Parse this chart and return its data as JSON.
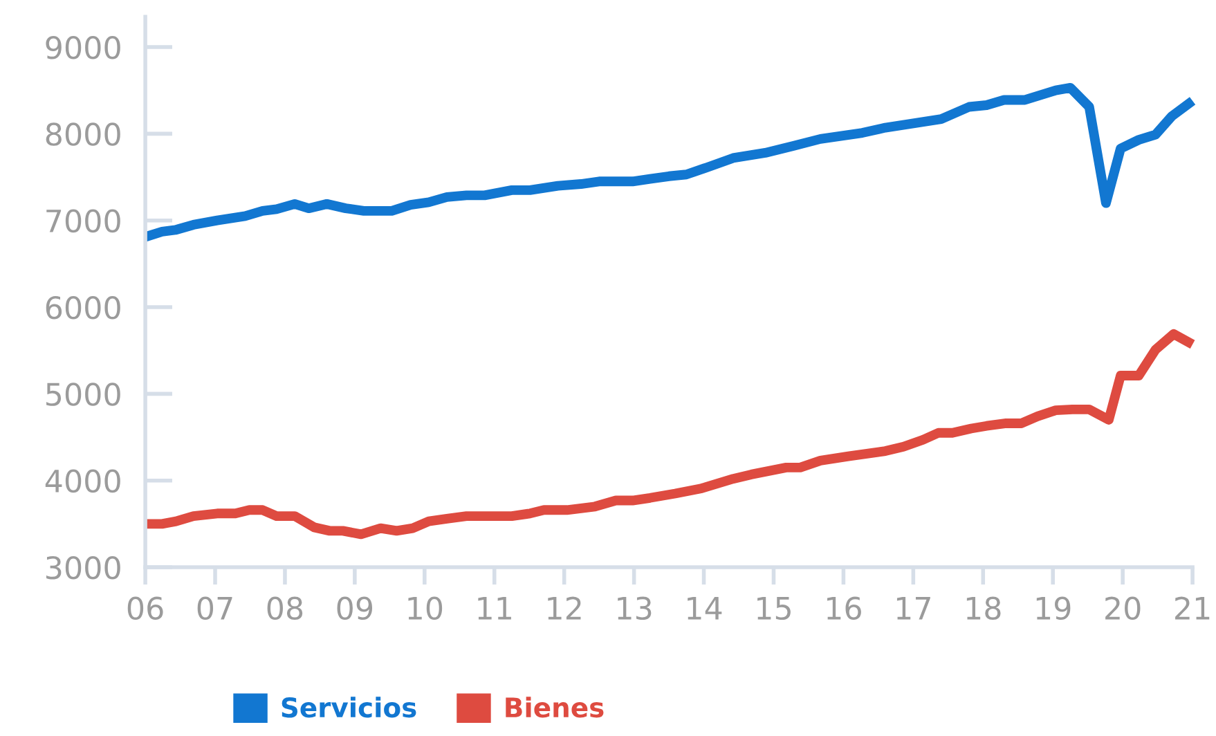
{
  "chart_data": {
    "type": "line",
    "xlim": [
      2006,
      2021
    ],
    "ylim": [
      3000,
      9350
    ],
    "xticks": [
      {
        "value": 2006,
        "label": "06"
      },
      {
        "value": 2007,
        "label": "07"
      },
      {
        "value": 2008,
        "label": "08"
      },
      {
        "value": 2009,
        "label": "09"
      },
      {
        "value": 2010,
        "label": "10"
      },
      {
        "value": 2011,
        "label": "11"
      },
      {
        "value": 2012,
        "label": "12"
      },
      {
        "value": 2013,
        "label": "13"
      },
      {
        "value": 2014,
        "label": "14"
      },
      {
        "value": 2015,
        "label": "15"
      },
      {
        "value": 2016,
        "label": "16"
      },
      {
        "value": 2017,
        "label": "17"
      },
      {
        "value": 2018,
        "label": "18"
      },
      {
        "value": 2019,
        "label": "19"
      },
      {
        "value": 2020,
        "label": "20"
      },
      {
        "value": 2021,
        "label": "21"
      }
    ],
    "yticks": [
      3000,
      4000,
      5000,
      6000,
      7000,
      8000,
      9000
    ],
    "grid": false,
    "legend": "bottom",
    "marker": "none",
    "line_style": "solid",
    "series": [
      {
        "name": "Servicios",
        "color": "#1277d1",
        "x": [
          2006.0,
          2006.24,
          2006.43,
          2006.69,
          2007.03,
          2007.43,
          2007.68,
          2007.88,
          2008.14,
          2008.34,
          2008.6,
          2008.87,
          2009.13,
          2009.53,
          2009.8,
          2010.06,
          2010.32,
          2010.6,
          2010.86,
          2011.25,
          2011.51,
          2011.91,
          2012.24,
          2012.5,
          2012.98,
          2013.23,
          2013.5,
          2013.75,
          2014.04,
          2014.42,
          2014.88,
          2015.28,
          2015.67,
          2016.27,
          2016.6,
          2017.4,
          2017.8,
          2018.05,
          2018.3,
          2018.6,
          2019.04,
          2019.25,
          2019.52,
          2019.76,
          2019.97,
          2020.23,
          2020.47,
          2020.7,
          2021.0
        ],
        "values": [
          6810,
          6870,
          6890,
          6950,
          7000,
          7050,
          7110,
          7130,
          7190,
          7140,
          7190,
          7140,
          7110,
          7110,
          7180,
          7210,
          7270,
          7290,
          7290,
          7350,
          7350,
          7400,
          7420,
          7450,
          7450,
          7480,
          7510,
          7530,
          7610,
          7720,
          7780,
          7860,
          7940,
          8010,
          8070,
          8170,
          8310,
          8330,
          8390,
          8390,
          8500,
          8530,
          8310,
          7200,
          7830,
          7930,
          7990,
          8200,
          8380
        ]
      },
      {
        "name": "Bienes",
        "color": "#de4b40",
        "x": [
          2006.0,
          2006.24,
          2006.44,
          2006.69,
          2007.03,
          2007.29,
          2007.49,
          2007.68,
          2007.88,
          2008.14,
          2008.42,
          2008.64,
          2008.83,
          2009.09,
          2009.37,
          2009.6,
          2009.83,
          2010.06,
          2010.32,
          2010.6,
          2011.0,
          2011.25,
          2011.51,
          2011.71,
          2012.04,
          2012.44,
          2012.74,
          2012.98,
          2013.23,
          2013.59,
          2013.97,
          2014.42,
          2014.68,
          2015.18,
          2015.38,
          2015.67,
          2016.07,
          2016.6,
          2016.86,
          2017.14,
          2017.36,
          2017.56,
          2017.83,
          2018.05,
          2018.33,
          2018.55,
          2018.78,
          2019.04,
          2019.28,
          2019.52,
          2019.8,
          2019.97,
          2020.23,
          2020.47,
          2020.73,
          2021.0
        ],
        "values": [
          3500,
          3500,
          3530,
          3590,
          3620,
          3620,
          3660,
          3660,
          3590,
          3590,
          3460,
          3420,
          3420,
          3380,
          3450,
          3420,
          3450,
          3530,
          3560,
          3590,
          3590,
          3590,
          3620,
          3660,
          3660,
          3700,
          3770,
          3770,
          3800,
          3850,
          3910,
          4020,
          4070,
          4150,
          4150,
          4230,
          4280,
          4340,
          4390,
          4470,
          4550,
          4550,
          4600,
          4630,
          4660,
          4660,
          4740,
          4810,
          4820,
          4820,
          4700,
          5210,
          5210,
          5510,
          5690,
          5570
        ]
      }
    ]
  }
}
